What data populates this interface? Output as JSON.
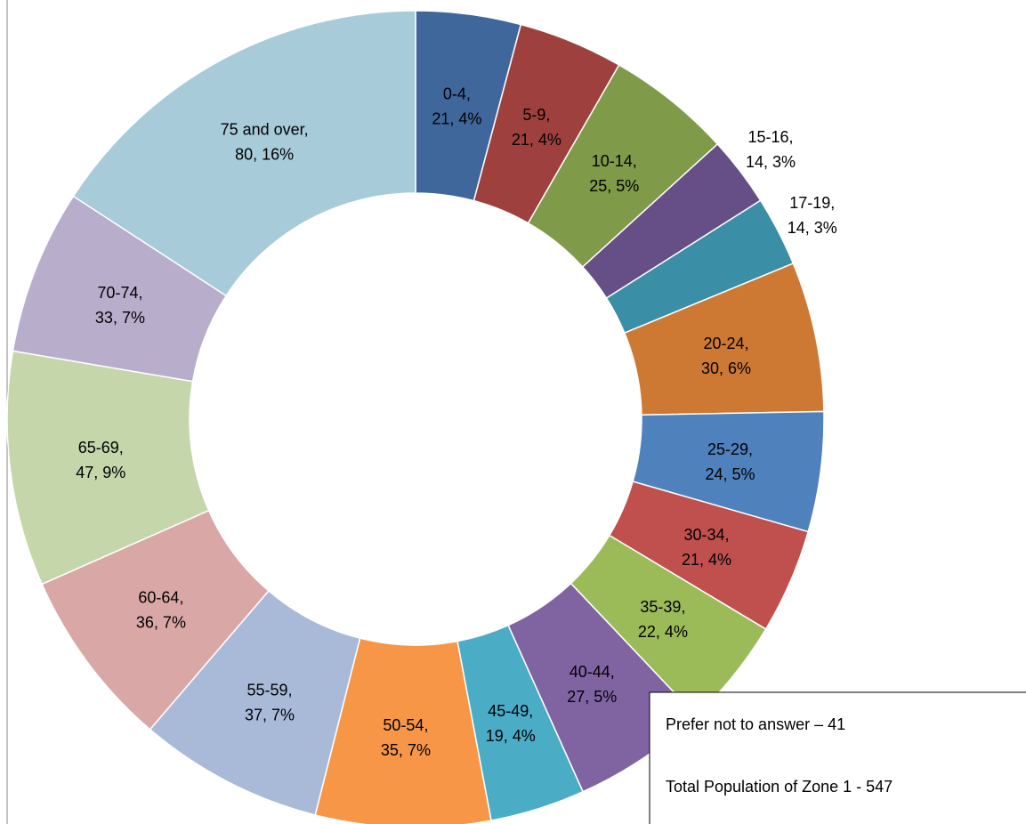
{
  "chart_data": {
    "type": "donut",
    "categories": [
      "0-4,",
      "5-9,",
      "10-14,",
      "15-16,",
      "17-19,",
      "20-24,",
      "25-29,",
      "30-34,",
      "35-39,",
      "40-44,",
      "45-49,",
      "50-54,",
      "55-59,",
      "60-64,",
      "65-69,",
      "70-74,",
      "75 and over,"
    ],
    "values": [
      21,
      21,
      25,
      14,
      14,
      30,
      24,
      21,
      22,
      27,
      19,
      35,
      37,
      36,
      47,
      33,
      80
    ],
    "value_labels": [
      "21, 4%",
      "21, 4%",
      "25, 5%",
      "14, 3%",
      "14, 3%",
      "30, 6%",
      "24, 5%",
      "21, 4%",
      "22, 4%",
      "27, 5%",
      "19, 4%",
      "35, 7%",
      "37, 7%",
      "36, 7%",
      "47, 9%",
      "33, 7%",
      "80, 16%"
    ],
    "colors": [
      "#3f679b",
      "#9e413e",
      "#7f9a48",
      "#664f86",
      "#3a8ea5",
      "#cd7934",
      "#4f81bd",
      "#c0504d",
      "#9bbb59",
      "#8064a2",
      "#4bacc6",
      "#f79646",
      "#a9bad9",
      "#d9a8a6",
      "#c4d6aa",
      "#b9adcc",
      "#a7cbd9"
    ],
    "annotations": [
      "Prefer not to answer – 41",
      "Total Population of Zone 1 - 547"
    ]
  }
}
